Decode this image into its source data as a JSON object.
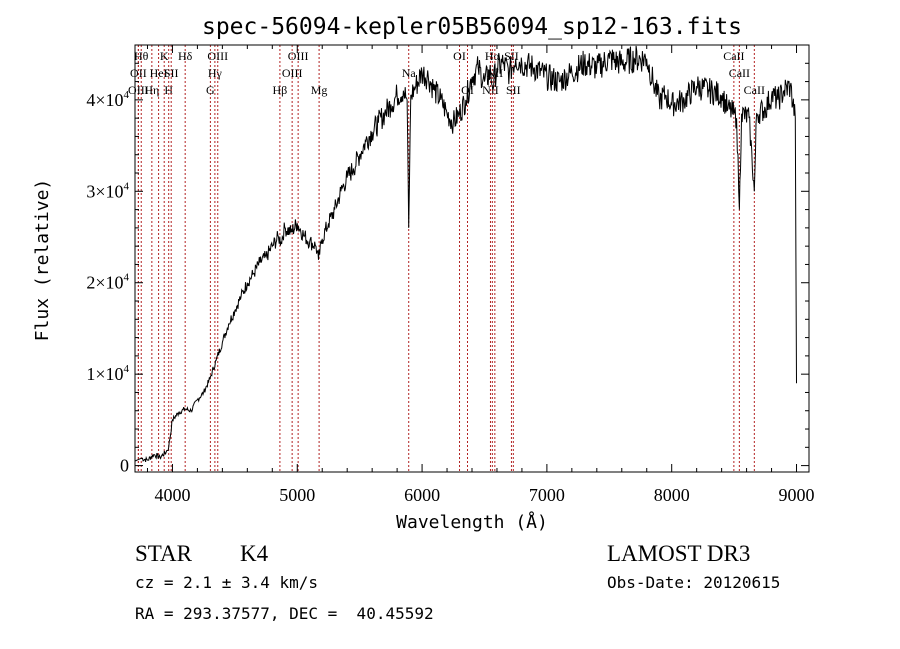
{
  "title": "spec-56094-kepler05B56094_sp12-163.fits",
  "chart_data": {
    "type": "line",
    "title": "spec-56094-kepler05B56094_sp12-163.fits",
    "xlabel": "Wavelength (Å)",
    "ylabel": "Flux (relative)",
    "xlim": [
      3700,
      9100
    ],
    "ylim": [
      -700,
      46000
    ],
    "x_ticks": [
      4000,
      5000,
      6000,
      7000,
      8000,
      9000
    ],
    "x_tick_labels": [
      "4000",
      "5000",
      "6000",
      "7000",
      "8000",
      "9000"
    ],
    "y_ticks": [
      0,
      10000,
      20000,
      30000,
      40000
    ],
    "y_tick_labels": [
      {
        "mant": "0",
        "exp": ""
      },
      {
        "mant": "1×10",
        "exp": "4"
      },
      {
        "mant": "2×10",
        "exp": "4"
      },
      {
        "mant": "3×10",
        "exp": "4"
      },
      {
        "mant": "4×10",
        "exp": "4"
      }
    ],
    "series": [
      {
        "name": "flux",
        "color": "#000000",
        "points": [
          [
            3700,
            500
          ],
          [
            3750,
            800
          ],
          [
            3800,
            600
          ],
          [
            3850,
            1200
          ],
          [
            3900,
            900
          ],
          [
            3950,
            1500
          ],
          [
            3970,
            2000
          ],
          [
            4000,
            5000
          ],
          [
            4050,
            5800
          ],
          [
            4100,
            6200
          ],
          [
            4150,
            6000
          ],
          [
            4200,
            7200
          ],
          [
            4250,
            8000
          ],
          [
            4300,
            9500
          ],
          [
            4350,
            11500
          ],
          [
            4400,
            13500
          ],
          [
            4450,
            15500
          ],
          [
            4500,
            17000
          ],
          [
            4550,
            18500
          ],
          [
            4600,
            20000
          ],
          [
            4650,
            21000
          ],
          [
            4700,
            22200
          ],
          [
            4750,
            22800
          ],
          [
            4800,
            24000
          ],
          [
            4850,
            25000
          ],
          [
            4870,
            24500
          ],
          [
            4900,
            26000
          ],
          [
            4950,
            25500
          ],
          [
            5000,
            26500
          ],
          [
            5050,
            25200
          ],
          [
            5100,
            24500
          ],
          [
            5150,
            24000
          ],
          [
            5170,
            22500
          ],
          [
            5200,
            24800
          ],
          [
            5250,
            26500
          ],
          [
            5300,
            28000
          ],
          [
            5350,
            30000
          ],
          [
            5400,
            31500
          ],
          [
            5450,
            32500
          ],
          [
            5500,
            34000
          ],
          [
            5550,
            35500
          ],
          [
            5600,
            36500
          ],
          [
            5650,
            37500
          ],
          [
            5700,
            38500
          ],
          [
            5750,
            39500
          ],
          [
            5800,
            40500
          ],
          [
            5850,
            41000
          ],
          [
            5880,
            40000
          ],
          [
            5893,
            26000
          ],
          [
            5910,
            40500
          ],
          [
            5950,
            41500
          ],
          [
            6000,
            43000
          ],
          [
            6050,
            42500
          ],
          [
            6100,
            41000
          ],
          [
            6150,
            40000
          ],
          [
            6200,
            38500
          ],
          [
            6250,
            37500
          ],
          [
            6300,
            38500
          ],
          [
            6350,
            40000
          ],
          [
            6400,
            42500
          ],
          [
            6450,
            43500
          ],
          [
            6500,
            42000
          ],
          [
            6550,
            43000
          ],
          [
            6563,
            41500
          ],
          [
            6600,
            43500
          ],
          [
            6650,
            44000
          ],
          [
            6700,
            43000
          ],
          [
            6750,
            44500
          ],
          [
            6800,
            44000
          ],
          [
            6900,
            43500
          ],
          [
            7000,
            42500
          ],
          [
            7100,
            42000
          ],
          [
            7200,
            43000
          ],
          [
            7300,
            44000
          ],
          [
            7400,
            43500
          ],
          [
            7500,
            44500
          ],
          [
            7600,
            44000
          ],
          [
            7700,
            44500
          ],
          [
            7800,
            44500
          ],
          [
            7850,
            42000
          ],
          [
            7900,
            40000
          ],
          [
            7950,
            40500
          ],
          [
            8000,
            39500
          ],
          [
            8100,
            40000
          ],
          [
            8200,
            41500
          ],
          [
            8300,
            41000
          ],
          [
            8400,
            40500
          ],
          [
            8450,
            39000
          ],
          [
            8498,
            38500
          ],
          [
            8520,
            38000
          ],
          [
            8542,
            28000
          ],
          [
            8560,
            38500
          ],
          [
            8620,
            38000
          ],
          [
            8662,
            30000
          ],
          [
            8680,
            38500
          ],
          [
            8750,
            39000
          ],
          [
            8800,
            40500
          ],
          [
            8850,
            40000
          ],
          [
            8900,
            41000
          ],
          [
            8950,
            41500
          ],
          [
            8990,
            38000
          ],
          [
            9000,
            9000
          ]
        ]
      }
    ],
    "line_markers": [
      {
        "wave": 3750,
        "label": "Hθ",
        "row": 0
      },
      {
        "wave": 3727,
        "label": "OII",
        "row": 1
      },
      {
        "wave": 3727,
        "label": "OIII",
        "row": 2
      },
      {
        "wave": 3835,
        "label": "Hη",
        "row": 2
      },
      {
        "wave": 3889,
        "label": "HeI",
        "row": 1
      },
      {
        "wave": 3934,
        "label": "K",
        "row": 0
      },
      {
        "wave": 3970,
        "label": "H",
        "row": 2
      },
      {
        "wave": 3990,
        "label": "SII",
        "row": 1
      },
      {
        "wave": 4102,
        "label": "Hδ",
        "row": 0
      },
      {
        "wave": 4304,
        "label": "G",
        "row": 2
      },
      {
        "wave": 4340,
        "label": "Hγ",
        "row": 1
      },
      {
        "wave": 4363,
        "label": "OIII",
        "row": 0
      },
      {
        "wave": 4861,
        "label": "Hβ",
        "row": 2
      },
      {
        "wave": 4959,
        "label": "OIII",
        "row": 1
      },
      {
        "wave": 5007,
        "label": "OIII",
        "row": 0
      },
      {
        "wave": 5175,
        "label": "Mg",
        "row": 2
      },
      {
        "wave": 5893,
        "label": "Na",
        "row": 1
      },
      {
        "wave": 6300,
        "label": "OI",
        "row": 0
      },
      {
        "wave": 6364,
        "label": "OI",
        "row": 2
      },
      {
        "wave": 6548,
        "label": "NII",
        "row": 2
      },
      {
        "wave": 6563,
        "label": "Hα",
        "row": 0
      },
      {
        "wave": 6583,
        "label": "NII",
        "row": 1
      },
      {
        "wave": 6716,
        "label": "SII",
        "row": 0
      },
      {
        "wave": 6731,
        "label": "SII",
        "row": 2
      },
      {
        "wave": 8498,
        "label": "CaII",
        "row": 0
      },
      {
        "wave": 8542,
        "label": "CaII",
        "row": 1
      },
      {
        "wave": 8662,
        "label": "CaII",
        "row": 2
      }
    ]
  },
  "info": {
    "class": "STAR",
    "subclass": "K4",
    "survey": "LAMOST DR3",
    "cz": "cz = 2.1 ± 3.4 km/s",
    "obs_date": "Obs-Date: 20120615",
    "radec": "RA = 293.37577, DEC =  40.45592"
  }
}
